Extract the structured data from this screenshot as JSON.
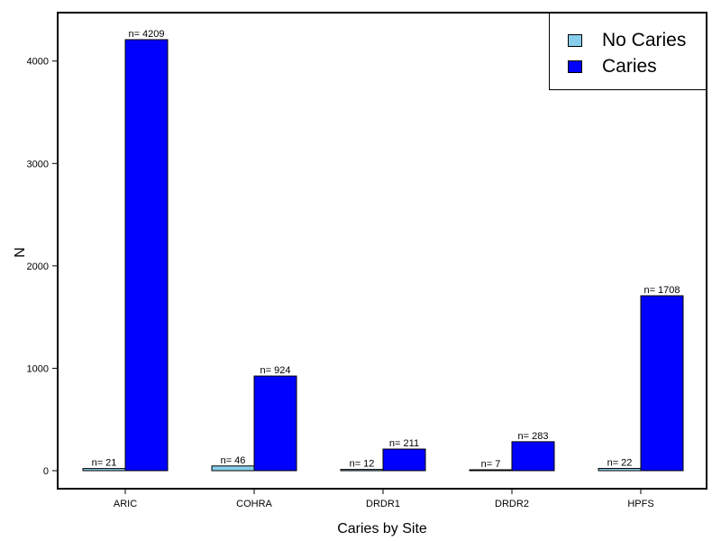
{
  "chart_data": {
    "type": "bar",
    "xlabel": "Caries by Site",
    "ylabel": "N",
    "categories": [
      "ARIC",
      "COHRA",
      "DRDR1",
      "DRDR2",
      "HPFS"
    ],
    "series": [
      {
        "name": "No Caries",
        "color": "#87CEEB",
        "values": [
          21,
          46,
          12,
          7,
          22
        ],
        "labels": [
          "n= 21",
          "n= 46",
          "n= 12",
          "n= 7",
          "n= 22"
        ]
      },
      {
        "name": "Caries",
        "color": "#0000FF",
        "values": [
          4209,
          924,
          211,
          283,
          1708
        ],
        "labels": [
          "n= 4209",
          "n= 924",
          "n= 211",
          "n= 283",
          "n= 1708"
        ]
      }
    ],
    "yticks": [
      0,
      1000,
      2000,
      3000,
      4000
    ],
    "ylim": [
      -200,
      4400
    ],
    "legend_position": "top-right",
    "grid": false
  }
}
